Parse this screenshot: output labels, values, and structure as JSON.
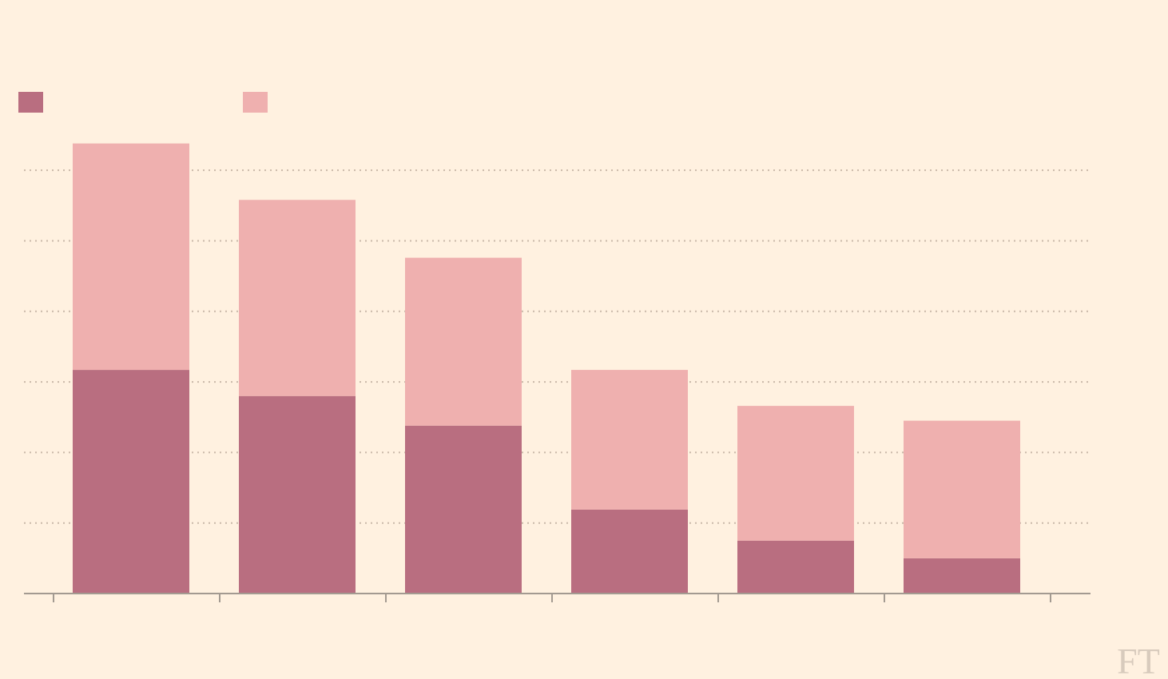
{
  "chart_data": {
    "type": "stacked-bar",
    "categories": [
      null,
      null,
      null,
      null,
      null,
      null
    ],
    "series": [
      {
        "color": "#b96e80",
        "values": [
          31.7,
          28.0,
          23.8,
          11.9,
          7.5,
          5.0
        ]
      },
      {
        "color": "#efb0af",
        "values": [
          32.1,
          27.8,
          23.8,
          19.8,
          19.1,
          19.5
        ]
      }
    ],
    "ylim": [
      0,
      65
    ],
    "yticks": [
      0,
      10,
      20,
      30,
      40,
      50,
      60
    ],
    "grid": true,
    "legend": "top-left",
    "logo": "FT"
  }
}
